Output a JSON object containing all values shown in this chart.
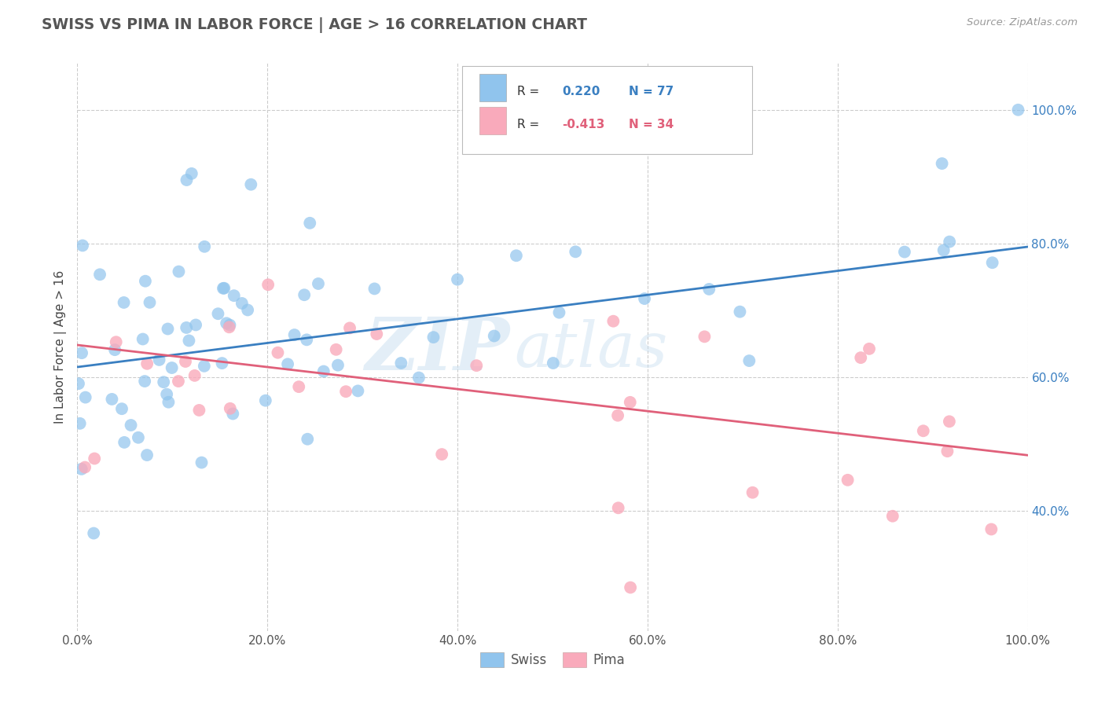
{
  "title": "SWISS VS PIMA IN LABOR FORCE | AGE > 16 CORRELATION CHART",
  "source_text": "Source: ZipAtlas.com",
  "ylabel": "In Labor Force | Age > 16",
  "xlim": [
    0.0,
    1.0
  ],
  "ylim": [
    0.22,
    1.07
  ],
  "x_tick_labels": [
    "0.0%",
    "20.0%",
    "40.0%",
    "60.0%",
    "80.0%",
    "100.0%"
  ],
  "x_tick_vals": [
    0.0,
    0.2,
    0.4,
    0.6,
    0.8,
    1.0
  ],
  "y_tick_labels": [
    "40.0%",
    "60.0%",
    "80.0%",
    "100.0%"
  ],
  "y_tick_vals": [
    0.4,
    0.6,
    0.8,
    1.0
  ],
  "blue_R": 0.22,
  "blue_N": 77,
  "pink_R": -0.413,
  "pink_N": 34,
  "watermark_zip": "ZIP",
  "watermark_atlas": "atlas",
  "blue_color": "#90C4ED",
  "pink_color": "#F9AABB",
  "blue_line_color": "#3A7FC1",
  "pink_line_color": "#E0607A",
  "legend_label_swiss": "Swiss",
  "legend_label_pima": "Pima",
  "blue_line_x0": 0.0,
  "blue_line_y0": 0.615,
  "blue_line_x1": 1.0,
  "blue_line_y1": 0.795,
  "pink_line_x0": 0.0,
  "pink_line_y0": 0.648,
  "pink_line_x1": 1.0,
  "pink_line_y1": 0.483
}
